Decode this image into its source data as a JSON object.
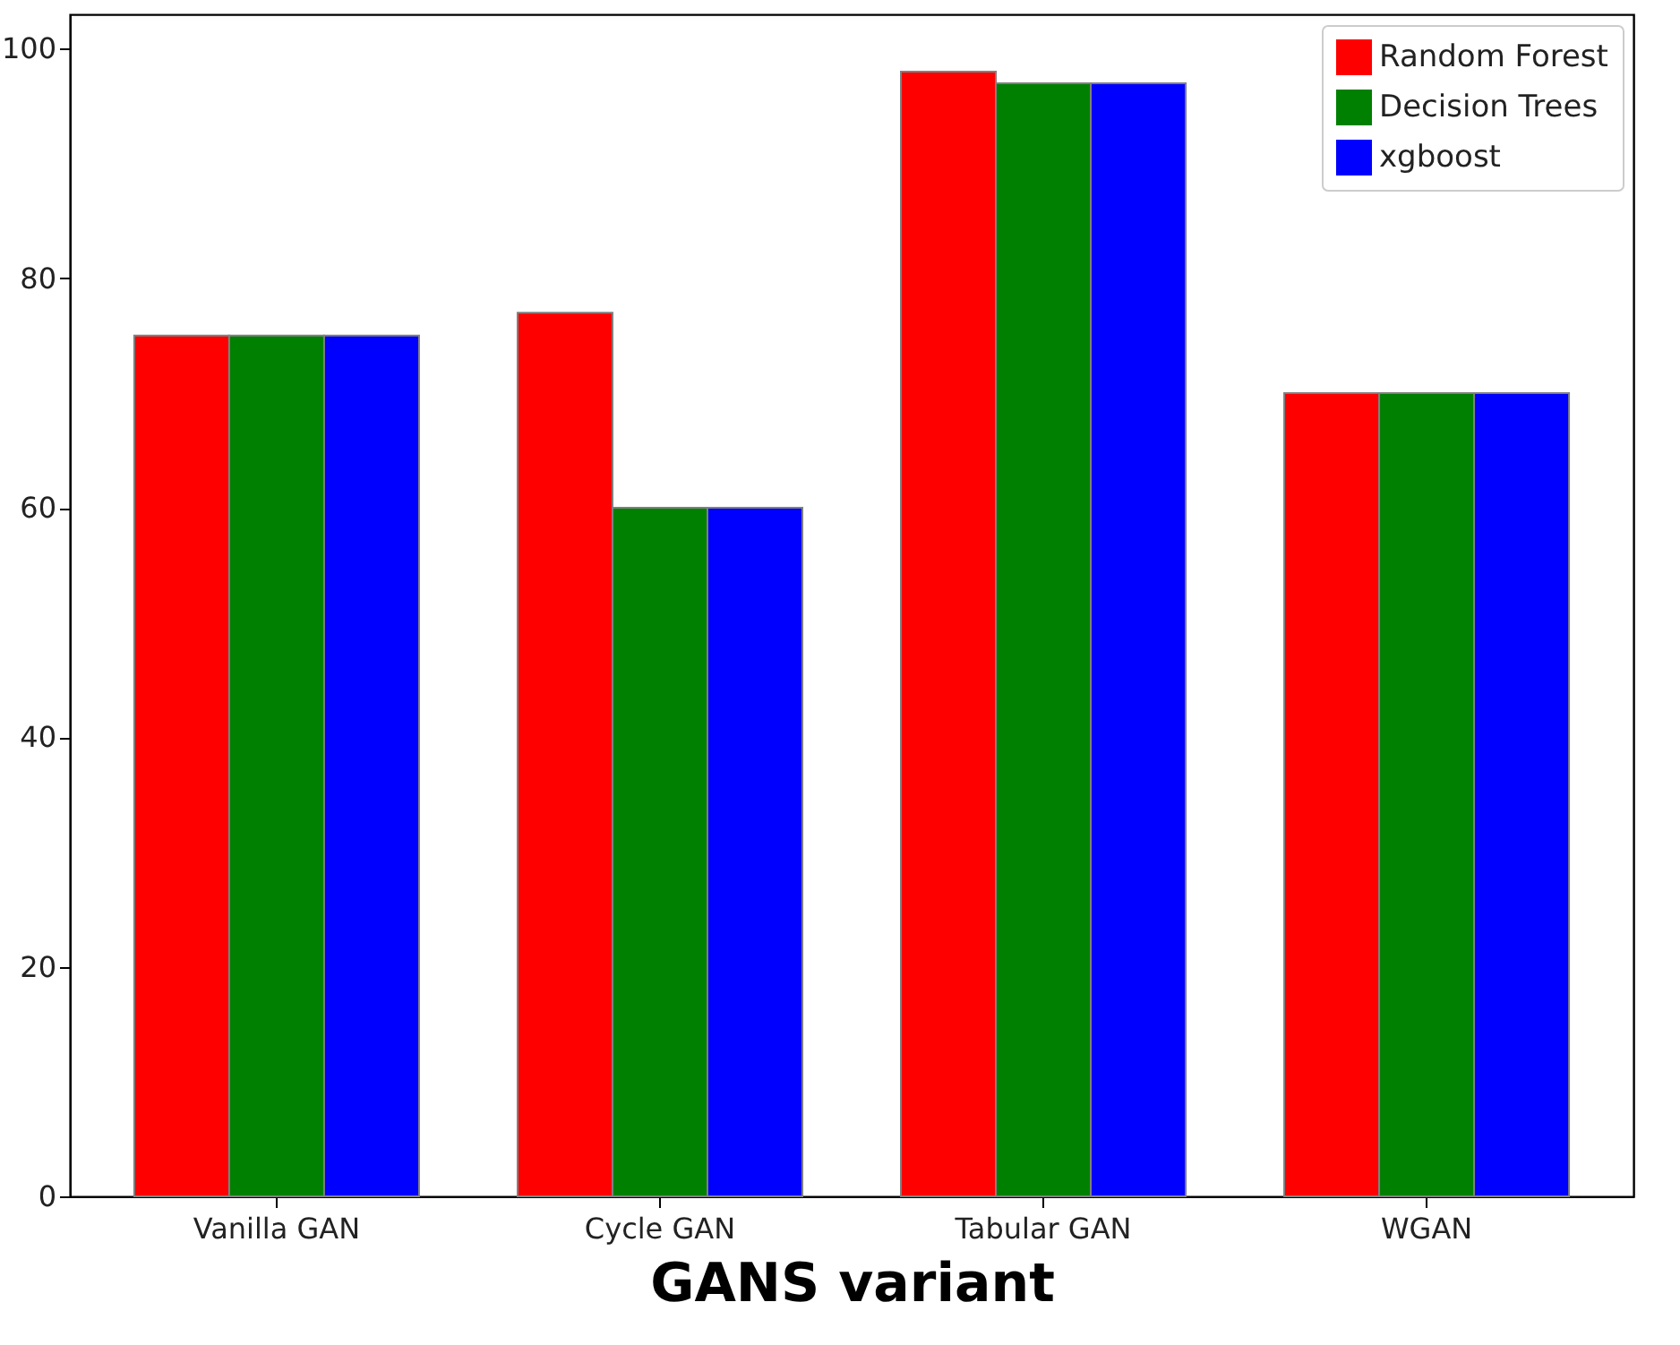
{
  "chart_data": {
    "type": "bar",
    "xlabel": "GANS variant",
    "categories": [
      "Vanilla GAN",
      "Cycle GAN",
      "Tabular GAN",
      "WGAN"
    ],
    "series": [
      {
        "name": "Random Forest",
        "color": "#ff0000",
        "values": [
          75,
          77,
          98,
          70
        ]
      },
      {
        "name": "Decision Trees",
        "color": "#008000",
        "values": [
          75,
          60,
          97,
          70
        ]
      },
      {
        "name": "xgboost",
        "color": "#0000ff",
        "values": [
          75,
          60,
          97,
          70
        ]
      }
    ],
    "ylim": [
      0,
      103
    ],
    "yticks": [
      0,
      20,
      40,
      60,
      80,
      100
    ],
    "legend": "top right"
  }
}
